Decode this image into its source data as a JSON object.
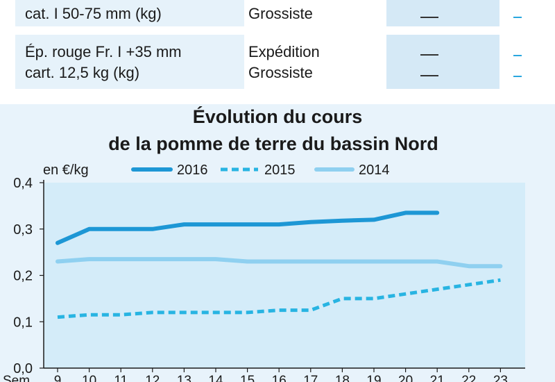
{
  "table": {
    "rows": [
      {
        "product": [
          "cat. I 50-75 mm (kg)"
        ],
        "stages": [
          "Grossiste"
        ],
        "values_a": [
          "—"
        ],
        "values_b": [
          "–"
        ]
      },
      {
        "product": [
          "Ép. rouge Fr. I +35 mm",
          "cart. 12,5 kg (kg)"
        ],
        "stages": [
          "Expédition",
          "Grossiste"
        ],
        "values_a": [
          "—",
          "—"
        ],
        "values_b": [
          "–",
          "–"
        ]
      }
    ]
  },
  "colors": {
    "s2016": "#1d97d5",
    "s2015": "#28b4e2",
    "s2014": "#8fd0f0",
    "plot_bg": "#d4ecf9",
    "panel_bg": "#e8f3fb"
  },
  "chart_data": {
    "type": "line",
    "title": [
      "Évolution du cours",
      "de la pomme de terre du bassin Nord"
    ],
    "ylabel": "en €/kg",
    "xlabel": "Sem.",
    "x": [
      9,
      10,
      11,
      12,
      13,
      14,
      15,
      16,
      17,
      18,
      19,
      20,
      21,
      22,
      23
    ],
    "x_tick_labels": [
      "9",
      "10",
      "11",
      "12",
      "13",
      "14",
      "15",
      "16",
      "17",
      "18",
      "19",
      "20",
      "21",
      "22",
      "23"
    ],
    "ylim": [
      0,
      0.4
    ],
    "y_ticks": [
      0,
      0.1,
      0.2,
      0.3,
      0.4
    ],
    "y_tick_labels": [
      "0,0",
      "0,1",
      "0,2",
      "0,3",
      "0,4"
    ],
    "legend_position": "top",
    "grid": false,
    "series": [
      {
        "name": "2016",
        "style": "solid-thick",
        "color": "#1d97d5",
        "x": [
          9,
          10,
          11,
          12,
          13,
          14,
          15,
          16,
          17,
          18,
          19,
          20,
          21
        ],
        "y": [
          0.27,
          0.3,
          0.3,
          0.3,
          0.31,
          0.31,
          0.31,
          0.31,
          0.315,
          0.318,
          0.32,
          0.335,
          0.335
        ]
      },
      {
        "name": "2015",
        "style": "dashed",
        "color": "#28b4e2",
        "x": [
          9,
          10,
          11,
          12,
          13,
          14,
          15,
          16,
          17,
          18,
          19,
          20,
          21,
          22,
          23
        ],
        "y": [
          0.11,
          0.115,
          0.115,
          0.12,
          0.12,
          0.12,
          0.12,
          0.125,
          0.125,
          0.15,
          0.15,
          0.16,
          0.17,
          0.18,
          0.19
        ]
      },
      {
        "name": "2014",
        "style": "solid",
        "color": "#8fd0f0",
        "x": [
          9,
          10,
          11,
          12,
          13,
          14,
          15,
          16,
          17,
          18,
          19,
          20,
          21,
          22,
          23
        ],
        "y": [
          0.23,
          0.235,
          0.235,
          0.235,
          0.235,
          0.235,
          0.23,
          0.23,
          0.23,
          0.23,
          0.23,
          0.23,
          0.23,
          0.22,
          0.22
        ]
      }
    ]
  }
}
